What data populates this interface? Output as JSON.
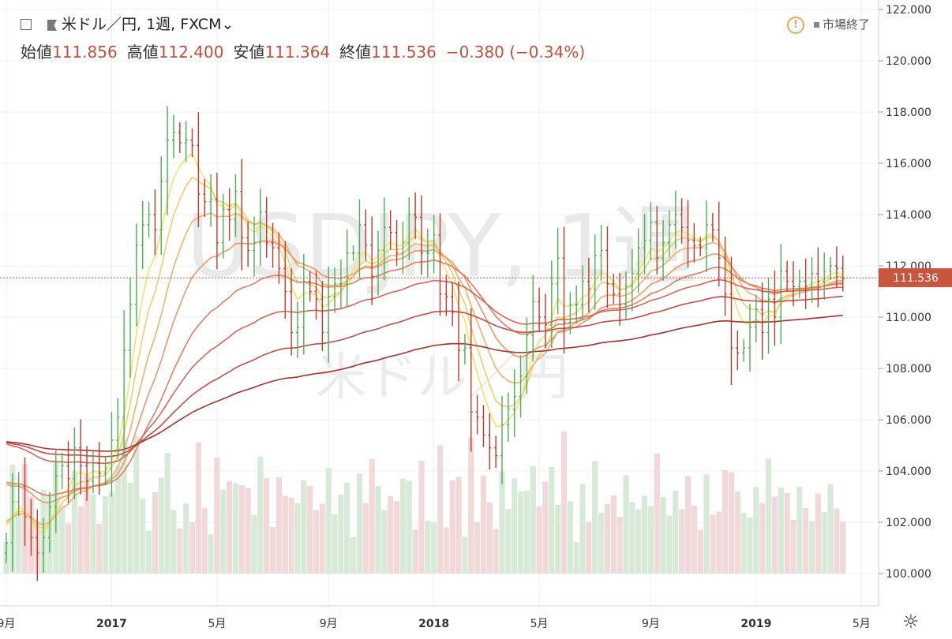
{
  "header": {
    "title": "米ドル／円, 1週, FXCM",
    "dropdown_icon": "chevron-down-icon",
    "market_status": "市場終了",
    "warning_icon": "exclamation-circle-icon"
  },
  "ohlc": {
    "open_label": "始値",
    "open_value": "111.856",
    "high_label": "高値",
    "high_value": "112.400",
    "low_label": "安値",
    "low_value": "111.364",
    "close_label": "終値",
    "close_value": "111.536",
    "change": "−0.380 (−0.34%)"
  },
  "watermark": {
    "symbol": "USDJPY, 1週",
    "name": "米ドル／円"
  },
  "price_label": "111.536",
  "settings_icon": "gear-icon",
  "colors": {
    "up": "#4caf50",
    "down": "#c0392b",
    "vol_up": "#d7ead7",
    "vol_down": "#f2d9d9",
    "last_price": "#c8553d",
    "grid": "#efefef"
  },
  "chart_data": {
    "type": "candlestick",
    "title": "米ドル／円, 1週, FXCM",
    "ylim": [
      99,
      122.3
    ],
    "y_ticks": [
      "100.000",
      "102.000",
      "104.000",
      "106.000",
      "108.000",
      "110.000",
      "112.000",
      "114.000",
      "116.000",
      "118.000",
      "120.000",
      "122.000"
    ],
    "y_tick_values": [
      100,
      102,
      104,
      106,
      108,
      110,
      112,
      114,
      116,
      118,
      120,
      122
    ],
    "x_ticks": [
      {
        "label": "9月",
        "week": 0
      },
      {
        "label": "2017",
        "week": 17
      },
      {
        "label": "5月",
        "week": 34
      },
      {
        "label": "9月",
        "week": 52
      },
      {
        "label": "2018",
        "week": 69
      },
      {
        "label": "5月",
        "week": 86
      },
      {
        "label": "9月",
        "week": 104
      },
      {
        "label": "2019",
        "week": 121
      },
      {
        "label": "5月",
        "week": 138
      }
    ],
    "last_price": 111.536,
    "closes": [
      101.2,
      102.8,
      103.4,
      102.2,
      101.4,
      100.8,
      101.4,
      102.6,
      103.8,
      104.2,
      103.7,
      104.9,
      104.2,
      103.6,
      104.3,
      103.9,
      104.1,
      105.2,
      106.1,
      108.7,
      110.5,
      112.8,
      113.6,
      114.0,
      113.4,
      115.3,
      116.9,
      117.2,
      116.8,
      116.9,
      116.7,
      114.8,
      114.5,
      114.6,
      112.9,
      114.2,
      113.8,
      114.9,
      113.1,
      112.6,
      112.9,
      114.1,
      112.9,
      112.7,
      111.9,
      111.0,
      109.4,
      109.6,
      111.4,
      111.0,
      110.7,
      109.4,
      110.8,
      111.3,
      111.3,
      112.5,
      112.5,
      113.6,
      112.8,
      111.6,
      112.6,
      113.5,
      113.3,
      112.5,
      112.9,
      114.0,
      113.9,
      112.5,
      112.5,
      113.2,
      110.9,
      110.8,
      110.2,
      108.7,
      108.8,
      106.3,
      106.1,
      105.4,
      104.9,
      104.6,
      105.8,
      106.4,
      106.9,
      107.7,
      109.3,
      110.6,
      110.0,
      109.7,
      111.3,
      112.3,
      109.8,
      110.5,
      110.5,
      111.4,
      111.1,
      112.4,
      112.6,
      111.3,
      110.9,
      110.5,
      111.2,
      111.7,
      112.7,
      113.0,
      113.7,
      112.3,
      112.9,
      113.6,
      114.0,
      113.5,
      113.0,
      112.8,
      112.7,
      113.6,
      113.4,
      112.3,
      110.9,
      108.8,
      108.6,
      108.8,
      109.6,
      110.3,
      109.4,
      110.7,
      110.0,
      111.8,
      111.4,
      111.2,
      111.4,
      111.2,
      111.7,
      111.4,
      111.8,
      112.0,
      111.9,
      111.5
    ],
    "volume_range": [
      0,
      1
    ],
    "ema_ribbon_periods": [
      5,
      8,
      13,
      21,
      34,
      55,
      89,
      144
    ]
  }
}
